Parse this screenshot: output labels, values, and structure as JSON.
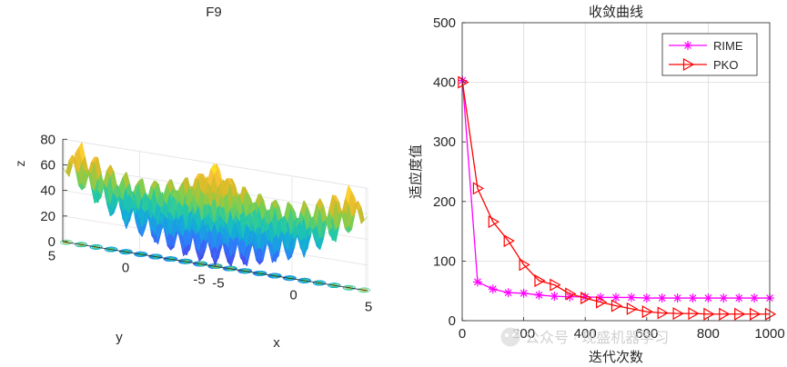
{
  "chart_data": [
    {
      "type": "surface3d",
      "title": "F9",
      "xlabel": "x",
      "ylabel": "y",
      "zlabel": "z",
      "z_ticks": [
        0,
        20,
        40,
        60,
        80
      ],
      "x_ticks": [
        -5,
        0,
        5
      ],
      "y_ticks": [
        -5,
        0,
        5
      ],
      "zlim": [
        0,
        80
      ],
      "xlim": [
        -5.12,
        5.12
      ],
      "ylim": [
        -5.12,
        5.12
      ],
      "function": "Rastrigin: 20 + x^2 - 10cos(2πx) + y^2 - 10cos(2πy)",
      "colormap": "parula",
      "contour_projection": true
    },
    {
      "type": "line",
      "title": "收敛曲线",
      "xlabel": "迭代次数",
      "ylabel": "适应度值",
      "xlim": [
        0,
        1000
      ],
      "ylim": [
        0,
        500
      ],
      "x_ticks": [
        0,
        200,
        400,
        600,
        800,
        1000
      ],
      "y_ticks": [
        0,
        100,
        200,
        300,
        400,
        500
      ],
      "grid": true,
      "legend_position": "top-right",
      "series": [
        {
          "name": "RIME",
          "color": "#ff00ff",
          "marker": "asterisk",
          "x": [
            1,
            50,
            100,
            150,
            200,
            250,
            300,
            350,
            400,
            450,
            500,
            550,
            600,
            650,
            700,
            750,
            800,
            850,
            900,
            950,
            1000
          ],
          "values": [
            403,
            65,
            53,
            47,
            46,
            43,
            41,
            40,
            40,
            39,
            39,
            39,
            38,
            38,
            38,
            38,
            38,
            38,
            38,
            38,
            38
          ]
        },
        {
          "name": "PKO",
          "color": "#ff0000",
          "marker": "triangle-right",
          "x": [
            1,
            50,
            100,
            150,
            200,
            250,
            300,
            350,
            400,
            450,
            500,
            550,
            600,
            650,
            700,
            750,
            800,
            850,
            900,
            950,
            1000
          ],
          "values": [
            400,
            222,
            166,
            134,
            94,
            67,
            60,
            45,
            38,
            31,
            25,
            20,
            15,
            13,
            12,
            12,
            11,
            11,
            11,
            11,
            11
          ]
        }
      ]
    }
  ],
  "watermark": "公众号 · 现盛机器学习"
}
